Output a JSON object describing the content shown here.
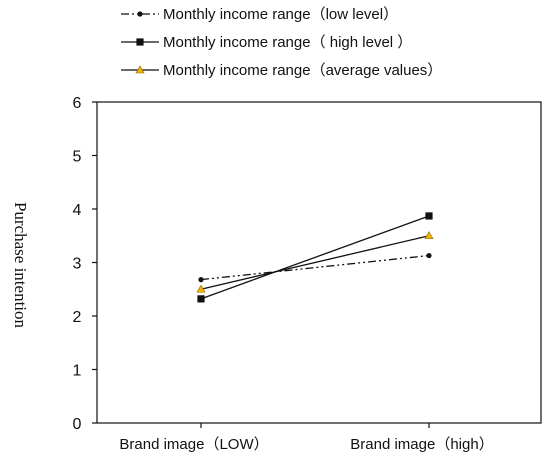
{
  "chart_data": {
    "type": "line",
    "categories": [
      "Brand image（LOW）",
      "Brand image（high）"
    ],
    "ylabel": "Purchase intention",
    "xlabel": "",
    "ylim": [
      0,
      6
    ],
    "yticks": [
      "0",
      "1",
      "2",
      "3",
      "4",
      "5",
      "6"
    ],
    "grid": false,
    "legend_position": "top",
    "series": [
      {
        "name": "Monthly income range（low level）",
        "values": [
          2.68,
          3.13
        ],
        "color": "#111111",
        "line_style": "dash-dot-dot",
        "marker": "circle",
        "marker_color": "#111111"
      },
      {
        "name": "Monthly income range（ high level ）",
        "values": [
          2.32,
          3.87
        ],
        "color": "#111111",
        "line_style": "solid",
        "marker": "square",
        "marker_color": "#111111"
      },
      {
        "name": "Monthly income range（average values）",
        "values": [
          2.5,
          3.5
        ],
        "color": "#111111",
        "line_style": "solid",
        "marker": "triangle",
        "marker_color": "#f0b400"
      }
    ]
  }
}
